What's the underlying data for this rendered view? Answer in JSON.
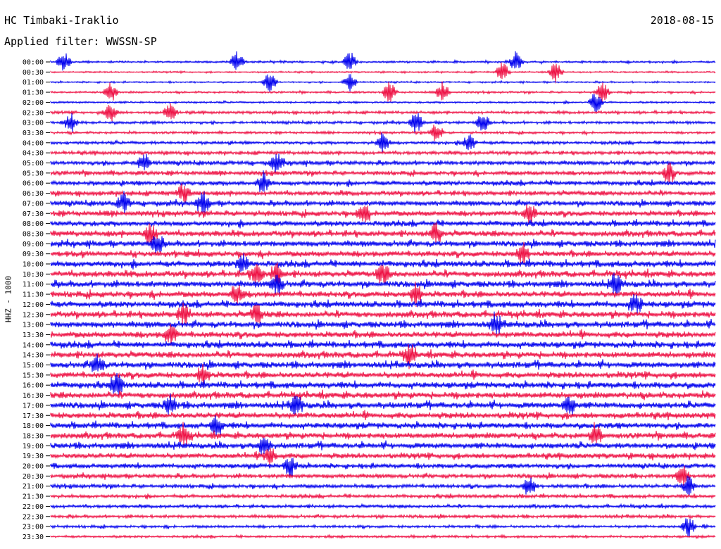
{
  "header": {
    "station": "HC Timbaki-Iraklio",
    "date": "2018-08-15",
    "filter": "Applied filter: WWSSN-SP",
    "channel": "HHZ - 1000"
  },
  "chart_data": {
    "type": "line",
    "title": "HC Timbaki-Iraklio",
    "subtitle": "Applied filter: WWSSN-SP",
    "date": "2018-08-15",
    "ylabel": "HHZ - 1000",
    "xlabel": "",
    "grid": false,
    "trace_colors": [
      "#0000ee",
      "#ee1144"
    ],
    "rows": [
      {
        "label": "00:00",
        "amp": 0.25,
        "events": [
          0.02,
          0.28,
          0.45,
          0.7
        ]
      },
      {
        "label": "00:30",
        "amp": 0.2,
        "events": [
          0.68,
          0.76
        ]
      },
      {
        "label": "01:00",
        "amp": 0.2,
        "events": [
          0.33,
          0.45
        ]
      },
      {
        "label": "01:30",
        "amp": 0.25,
        "events": [
          0.09,
          0.51,
          0.59,
          0.83
        ]
      },
      {
        "label": "02:00",
        "amp": 0.25,
        "events": [
          0.82
        ]
      },
      {
        "label": "02:30",
        "amp": 0.35,
        "events": [
          0.09,
          0.18
        ]
      },
      {
        "label": "03:00",
        "amp": 0.35,
        "events": [
          0.03,
          0.55,
          0.65
        ]
      },
      {
        "label": "03:30",
        "amp": 0.3,
        "events": [
          0.58
        ]
      },
      {
        "label": "04:00",
        "amp": 0.4,
        "events": [
          0.5,
          0.63
        ]
      },
      {
        "label": "04:30",
        "amp": 0.45,
        "events": []
      },
      {
        "label": "05:00",
        "amp": 0.55,
        "events": [
          0.14,
          0.34
        ]
      },
      {
        "label": "05:30",
        "amp": 0.55,
        "events": [
          0.93
        ]
      },
      {
        "label": "06:00",
        "amp": 0.6,
        "events": [
          0.32
        ]
      },
      {
        "label": "06:30",
        "amp": 0.6,
        "events": [
          0.2
        ]
      },
      {
        "label": "07:00",
        "amp": 0.65,
        "events": [
          0.11,
          0.23
        ]
      },
      {
        "label": "07:30",
        "amp": 0.7,
        "events": [
          0.47,
          0.72
        ]
      },
      {
        "label": "08:00",
        "amp": 0.7,
        "events": []
      },
      {
        "label": "08:30",
        "amp": 0.75,
        "events": [
          0.15,
          0.58
        ]
      },
      {
        "label": "09:00",
        "amp": 0.75,
        "events": [
          0.16
        ]
      },
      {
        "label": "09:30",
        "amp": 0.75,
        "events": [
          0.71
        ]
      },
      {
        "label": "10:00",
        "amp": 0.8,
        "events": [
          0.29
        ]
      },
      {
        "label": "10:30",
        "amp": 0.8,
        "events": [
          0.31,
          0.34,
          0.5
        ]
      },
      {
        "label": "11:00",
        "amp": 0.8,
        "events": [
          0.34,
          0.85
        ]
      },
      {
        "label": "11:30",
        "amp": 0.8,
        "events": [
          0.28,
          0.55
        ]
      },
      {
        "label": "12:00",
        "amp": 0.8,
        "events": [
          0.88
        ]
      },
      {
        "label": "12:30",
        "amp": 0.8,
        "events": [
          0.2,
          0.31
        ]
      },
      {
        "label": "13:00",
        "amp": 0.8,
        "events": [
          0.67
        ]
      },
      {
        "label": "13:30",
        "amp": 0.8,
        "events": [
          0.18
        ]
      },
      {
        "label": "14:00",
        "amp": 0.8,
        "events": []
      },
      {
        "label": "14:30",
        "amp": 0.8,
        "events": [
          0.54
        ]
      },
      {
        "label": "15:00",
        "amp": 0.8,
        "events": [
          0.07
        ]
      },
      {
        "label": "15:30",
        "amp": 0.8,
        "events": [
          0.23
        ]
      },
      {
        "label": "16:00",
        "amp": 0.8,
        "events": [
          0.1
        ]
      },
      {
        "label": "16:30",
        "amp": 0.8,
        "events": []
      },
      {
        "label": "17:00",
        "amp": 0.8,
        "events": [
          0.18,
          0.37,
          0.78
        ]
      },
      {
        "label": "17:30",
        "amp": 0.8,
        "events": []
      },
      {
        "label": "18:00",
        "amp": 0.75,
        "events": [
          0.25
        ]
      },
      {
        "label": "18:30",
        "amp": 0.75,
        "events": [
          0.2,
          0.82
        ]
      },
      {
        "label": "19:00",
        "amp": 0.75,
        "events": [
          0.32
        ]
      },
      {
        "label": "19:30",
        "amp": 0.7,
        "events": [
          0.33
        ]
      },
      {
        "label": "20:00",
        "amp": 0.6,
        "events": [
          0.36
        ]
      },
      {
        "label": "20:30",
        "amp": 0.55,
        "events": [
          0.95
        ]
      },
      {
        "label": "21:00",
        "amp": 0.5,
        "events": [
          0.72,
          0.96
        ]
      },
      {
        "label": "21:30",
        "amp": 0.45,
        "events": []
      },
      {
        "label": "22:00",
        "amp": 0.4,
        "events": []
      },
      {
        "label": "22:30",
        "amp": 0.4,
        "events": []
      },
      {
        "label": "23:00",
        "amp": 0.35,
        "events": [
          0.96
        ]
      },
      {
        "label": "23:30",
        "amp": 0.3,
        "events": []
      }
    ]
  }
}
